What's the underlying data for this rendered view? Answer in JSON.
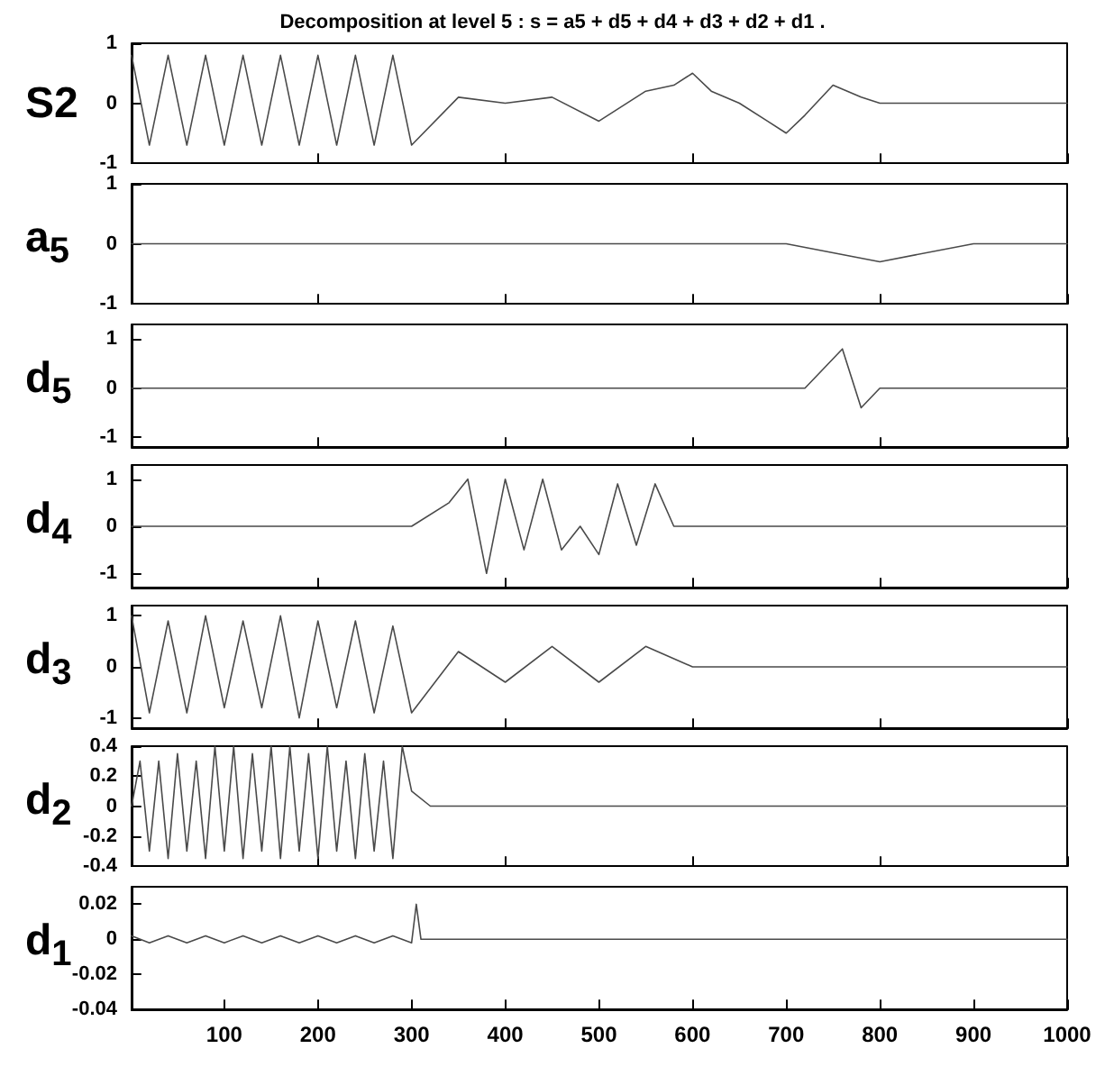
{
  "chart_data": [
    {
      "type": "line",
      "title": "Decomposition at level 5 : s = a5 + d5 + d4 + d3 + d2 + d1 .",
      "ylabel": "S2",
      "xlim": [
        1,
        1000
      ],
      "ylim": [
        -1,
        1
      ],
      "yticks": [
        -1,
        0,
        1
      ],
      "tick_labels": "y",
      "grid": false,
      "marker": "none",
      "line_style": "solid",
      "x": [
        1,
        20,
        40,
        60,
        80,
        100,
        120,
        140,
        160,
        180,
        200,
        220,
        240,
        260,
        280,
        300,
        350,
        400,
        450,
        500,
        550,
        580,
        600,
        620,
        650,
        680,
        700,
        720,
        750,
        780,
        800,
        850,
        900,
        950,
        1000
      ],
      "series": [
        {
          "color": "#4a4a4a",
          "values": [
            0.8,
            -0.7,
            0.8,
            -0.7,
            0.8,
            -0.7,
            0.8,
            -0.7,
            0.8,
            -0.7,
            0.8,
            -0.7,
            0.8,
            -0.7,
            0.8,
            -0.7,
            0.1,
            0,
            0.1,
            -0.3,
            0.2,
            0.3,
            0.5,
            0.2,
            0,
            -0.3,
            -0.5,
            -0.2,
            0.3,
            0.1,
            0,
            0,
            0,
            0,
            0
          ]
        }
      ]
    },
    {
      "type": "line",
      "ylabel": "a$_{5}$",
      "xlim": [
        1,
        1000
      ],
      "ylim": [
        -1,
        1
      ],
      "yticks": [
        -1,
        0,
        1
      ],
      "tick_labels": "y",
      "grid": false,
      "marker": "none",
      "line_style": "solid",
      "x": [
        1,
        100,
        200,
        300,
        400,
        500,
        600,
        700,
        800,
        900,
        1000
      ],
      "series": [
        {
          "color": "#4a4a4a",
          "values": [
            0,
            0,
            0,
            0,
            0,
            0,
            0,
            0,
            -0.3,
            0,
            0
          ]
        }
      ]
    },
    {
      "type": "line",
      "ylabel": "d$_{5}$",
      "xlim": [
        1,
        1000
      ],
      "ylim": [
        -1.2,
        1.3
      ],
      "yticks": [
        -1,
        0,
        1
      ],
      "tick_labels": "y",
      "grid": false,
      "marker": "none",
      "line_style": "solid",
      "x": [
        1,
        100,
        200,
        300,
        400,
        500,
        600,
        700,
        720,
        740,
        760,
        780,
        800,
        900,
        1000
      ],
      "series": [
        {
          "color": "#4a4a4a",
          "values": [
            0,
            0,
            0,
            0,
            0,
            0,
            0,
            0,
            0,
            0.4,
            0.8,
            -0.4,
            0,
            0,
            0
          ]
        }
      ]
    },
    {
      "type": "line",
      "ylabel": "d$_{4}$",
      "xlim": [
        1,
        1000
      ],
      "ylim": [
        -1.3,
        1.3
      ],
      "yticks": [
        -1,
        0,
        1
      ],
      "tick_labels": "y",
      "grid": false,
      "marker": "none",
      "line_style": "solid",
      "x": [
        1,
        100,
        200,
        300,
        340,
        360,
        380,
        400,
        420,
        440,
        460,
        480,
        500,
        520,
        540,
        560,
        580,
        600,
        650,
        700,
        800,
        900,
        1000
      ],
      "series": [
        {
          "color": "#4a4a4a",
          "values": [
            0,
            0,
            0,
            0,
            0.5,
            1,
            -1,
            1,
            -0.5,
            1,
            -0.5,
            0,
            -0.6,
            0.9,
            -0.4,
            0.9,
            0,
            0,
            0,
            0,
            0,
            0,
            0
          ]
        }
      ]
    },
    {
      "type": "line",
      "ylabel": "d$_{3}$",
      "xlim": [
        1,
        1000
      ],
      "ylim": [
        -1.2,
        1.2
      ],
      "yticks": [
        -1,
        0,
        1
      ],
      "tick_labels": "y",
      "grid": false,
      "marker": "none",
      "line_style": "solid",
      "x": [
        1,
        20,
        40,
        60,
        80,
        100,
        120,
        140,
        160,
        180,
        200,
        220,
        240,
        260,
        280,
        300,
        350,
        400,
        450,
        500,
        550,
        600,
        650,
        700,
        800,
        900,
        1000
      ],
      "series": [
        {
          "color": "#4a4a4a",
          "values": [
            1,
            -0.9,
            0.9,
            -0.9,
            1,
            -0.8,
            0.9,
            -0.8,
            1,
            -1,
            0.9,
            -0.8,
            0.9,
            -0.9,
            0.8,
            -0.9,
            0.3,
            -0.3,
            0.4,
            -0.3,
            0.4,
            0,
            0,
            0,
            0,
            0,
            0
          ]
        }
      ]
    },
    {
      "type": "line",
      "ylabel": "d$_{2}$",
      "xlim": [
        1,
        1000
      ],
      "ylim": [
        -0.4,
        0.4
      ],
      "yticks": [
        -0.4,
        -0.2,
        0,
        0.2,
        0.4
      ],
      "tick_labels": "y",
      "grid": false,
      "marker": "none",
      "line_style": "solid",
      "x": [
        1,
        10,
        20,
        30,
        40,
        50,
        60,
        70,
        80,
        90,
        100,
        110,
        120,
        130,
        140,
        150,
        160,
        170,
        180,
        190,
        200,
        210,
        220,
        230,
        240,
        250,
        260,
        270,
        280,
        290,
        300,
        320,
        400,
        500,
        600,
        700,
        800,
        900,
        1000
      ],
      "series": [
        {
          "color": "#4a4a4a",
          "values": [
            0,
            0.3,
            -0.3,
            0.3,
            -0.35,
            0.35,
            -0.3,
            0.3,
            -0.35,
            0.4,
            -0.3,
            0.4,
            -0.35,
            0.35,
            -0.3,
            0.4,
            -0.35,
            0.4,
            -0.3,
            0.35,
            -0.35,
            0.4,
            -0.3,
            0.3,
            -0.35,
            0.35,
            -0.3,
            0.3,
            -0.35,
            0.4,
            0.1,
            0,
            0,
            0,
            0,
            0,
            0,
            0,
            0
          ]
        }
      ]
    },
    {
      "type": "line",
      "ylabel": "d$_{1}$",
      "xlim": [
        1,
        1000
      ],
      "ylim": [
        -0.04,
        0.03
      ],
      "xticks": [
        100,
        200,
        300,
        400,
        500,
        600,
        700,
        800,
        900,
        1000
      ],
      "yticks": [
        -0.04,
        -0.02,
        0,
        0.02
      ],
      "grid": false,
      "marker": "none",
      "line_style": "solid",
      "x": [
        1,
        20,
        40,
        60,
        80,
        100,
        120,
        140,
        160,
        180,
        200,
        220,
        240,
        260,
        280,
        300,
        305,
        310,
        400,
        500,
        600,
        700,
        800,
        900,
        1000
      ],
      "series": [
        {
          "color": "#4a4a4a",
          "values": [
            0.002,
            -0.002,
            0.002,
            -0.002,
            0.002,
            -0.002,
            0.002,
            -0.002,
            0.002,
            -0.002,
            0.002,
            -0.002,
            0.002,
            -0.002,
            0.002,
            -0.002,
            0.02,
            0,
            0,
            0,
            0,
            0,
            0,
            0,
            0
          ]
        }
      ]
    }
  ]
}
